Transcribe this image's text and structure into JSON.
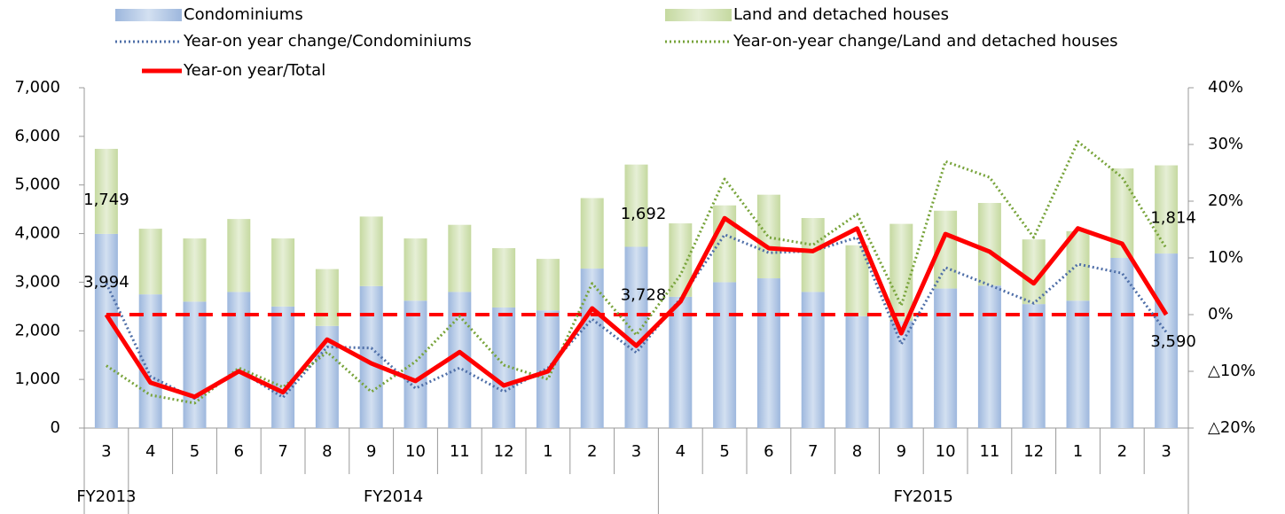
{
  "chart_data": {
    "type": "bar",
    "categories": [
      "3",
      "4",
      "5",
      "6",
      "7",
      "8",
      "9",
      "10",
      "11",
      "12",
      "1",
      "2",
      "3",
      "4",
      "5",
      "6",
      "7",
      "8",
      "9",
      "10",
      "11",
      "12",
      "1",
      "2",
      "3"
    ],
    "groups": [
      {
        "label": "FY2013",
        "start": 0,
        "end": 0
      },
      {
        "label": "FY2014",
        "start": 1,
        "end": 12
      },
      {
        "label": "FY2015",
        "start": 13,
        "end": 24
      }
    ],
    "series": [
      {
        "name": "Condominiums",
        "type": "bar",
        "color": "#b8cce4",
        "values": [
          3994,
          2750,
          2600,
          2800,
          2500,
          2100,
          2920,
          2620,
          2800,
          2480,
          2420,
          3280,
          3728,
          2700,
          3000,
          3080,
          2800,
          2300,
          2200,
          2870,
          2930,
          2550,
          2620,
          3500,
          3590
        ],
        "value_labels": [
          "3,994",
          null,
          null,
          null,
          null,
          null,
          null,
          null,
          null,
          null,
          null,
          null,
          "3,728",
          null,
          null,
          null,
          null,
          null,
          null,
          null,
          null,
          null,
          null,
          null,
          "3,590"
        ]
      },
      {
        "name": "Land and detached houses",
        "type": "bar",
        "color": "#d7e4bd",
        "values": [
          1749,
          1350,
          1300,
          1500,
          1400,
          1170,
          1430,
          1280,
          1380,
          1220,
          1060,
          1450,
          1692,
          1510,
          1580,
          1720,
          1520,
          1460,
          2000,
          1600,
          1700,
          1330,
          1430,
          1840,
          1814
        ],
        "value_labels": [
          "1,749",
          null,
          null,
          null,
          null,
          null,
          null,
          null,
          null,
          null,
          null,
          null,
          "1,692",
          null,
          null,
          null,
          null,
          null,
          null,
          null,
          null,
          null,
          null,
          null,
          "1,814"
        ]
      },
      {
        "name": "Year-on year change/Condominiums",
        "type": "line",
        "axis": "y2",
        "color": "#4f6fa8",
        "line_style": "dotted",
        "values": [
          5.5,
          -10.9,
          -14.8,
          -9.8,
          -14.6,
          -5.7,
          -5.9,
          -13,
          -9.4,
          -13.6,
          -9.4,
          -0.8,
          -6.7,
          2.8,
          14.1,
          10.9,
          11.2,
          13.6,
          -5.2,
          8.3,
          5.2,
          2,
          8.9,
          7.3,
          -3.1
        ]
      },
      {
        "name": "Year-on-year change/Land and detached houses",
        "type": "line",
        "axis": "y2",
        "color": "#77a33a",
        "line_style": "dotted",
        "values": [
          -9,
          -14.2,
          -15.6,
          -9.4,
          -12.8,
          -6.6,
          -13.6,
          -8.3,
          -0.3,
          -8.9,
          -11.4,
          5.5,
          -3.6,
          7,
          23.9,
          13.6,
          12.3,
          17.7,
          1.6,
          27,
          24.2,
          13.6,
          30.5,
          24.2,
          11.7
        ]
      },
      {
        "name": "Year-on year/Total",
        "type": "line",
        "axis": "y2",
        "color": "#ff0000",
        "line_style": "solid",
        "values": [
          0,
          -12,
          -14.5,
          -10,
          -13.7,
          -4.4,
          -8.6,
          -11.7,
          -6.6,
          -12.5,
          -10,
          1.1,
          -5.5,
          2.3,
          17,
          11.7,
          11.2,
          15.2,
          -3.3,
          14.2,
          11.1,
          5.5,
          15.2,
          12.5,
          0
        ]
      }
    ],
    "ylim": [
      0,
      7000
    ],
    "yticks": [
      0,
      {
        "value": 1000,
        "label": "1,000"
      },
      {
        "value": 2000,
        "label": "2,000"
      },
      {
        "value": 3000,
        "label": "3,000"
      },
      {
        "value": 4000,
        "label": "4,000"
      },
      {
        "value": 5000,
        "label": "5,000"
      },
      {
        "value": 6000,
        "label": "6,000"
      },
      {
        "value": 7000,
        "label": "7,000"
      }
    ],
    "y2lim": [
      -20,
      40
    ],
    "y2ticks": [
      {
        "value": -20,
        "label": "△20%"
      },
      {
        "value": -10,
        "label": "△10%"
      },
      {
        "value": 0,
        "label": "0%"
      },
      {
        "value": 10,
        "label": "10%"
      },
      {
        "value": 20,
        "label": "20%"
      },
      {
        "value": 30,
        "label": "30%"
      },
      {
        "value": 40,
        "label": "40%"
      }
    ],
    "y2_negative_tick_color": "#ff0000",
    "reference_line": {
      "axis": "y2",
      "value": 0,
      "color": "#ff0000"
    },
    "grid": false
  }
}
